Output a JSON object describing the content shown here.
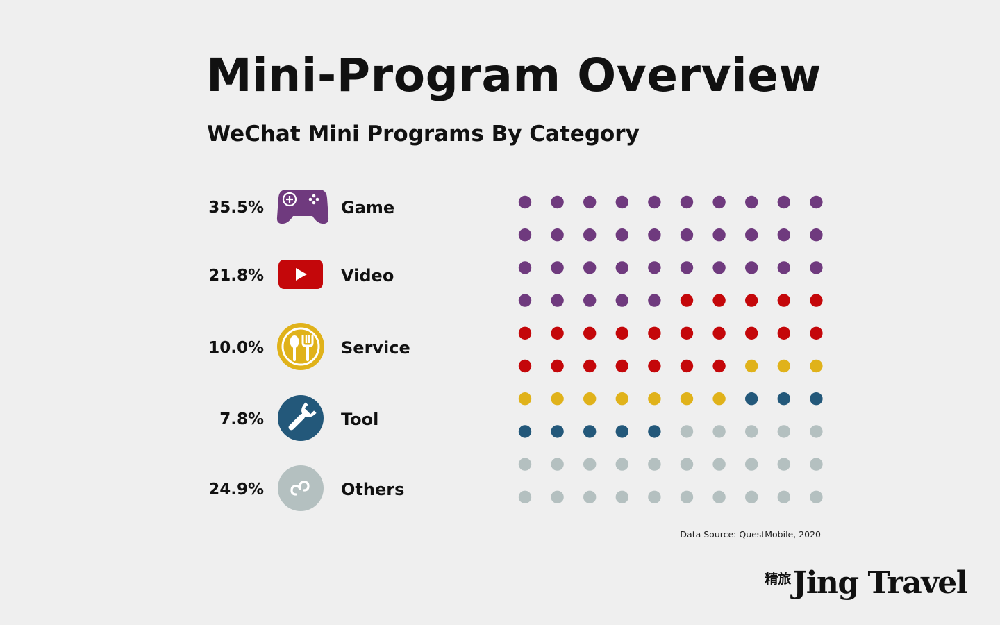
{
  "title": "Mini-Program Overview",
  "subtitle": "WeChat Mini Programs By Category",
  "legend": [
    {
      "percent": "35.5%",
      "label": "Game",
      "icon": "gamepad-icon",
      "color": "#6f3a7e"
    },
    {
      "percent": "21.8%",
      "label": "Video",
      "icon": "play-button-icon",
      "color": "#c4070a"
    },
    {
      "percent": "10.0%",
      "label": "Service",
      "icon": "spoon-fork-icon",
      "color": "#e0b21a"
    },
    {
      "percent": "7.8%",
      "label": "Tool",
      "icon": "wrench-icon",
      "color": "#23587a"
    },
    {
      "percent": "24.9%",
      "label": "Others",
      "icon": "mini-program-icon",
      "color": "#b4c0c0"
    }
  ],
  "chart_data": {
    "type": "dot-matrix",
    "title": "WeChat Mini Programs By Category",
    "grid": {
      "columns": 10,
      "rows": 10
    },
    "series": [
      {
        "name": "Game",
        "value": 35.5,
        "dots": 35,
        "color": "#6f3a7e"
      },
      {
        "name": "Video",
        "value": 21.8,
        "dots": 22,
        "color": "#c4070a"
      },
      {
        "name": "Service",
        "value": 10.0,
        "dots": 10,
        "color": "#e0b21a"
      },
      {
        "name": "Tool",
        "value": 7.8,
        "dots": 8,
        "color": "#23587a"
      },
      {
        "name": "Others",
        "value": 24.9,
        "dots": 25,
        "color": "#b4c0c0"
      }
    ]
  },
  "source": "Data Source: QuestMobile, 2020",
  "brand": {
    "cn": "精旅",
    "en": "Jing Travel"
  }
}
